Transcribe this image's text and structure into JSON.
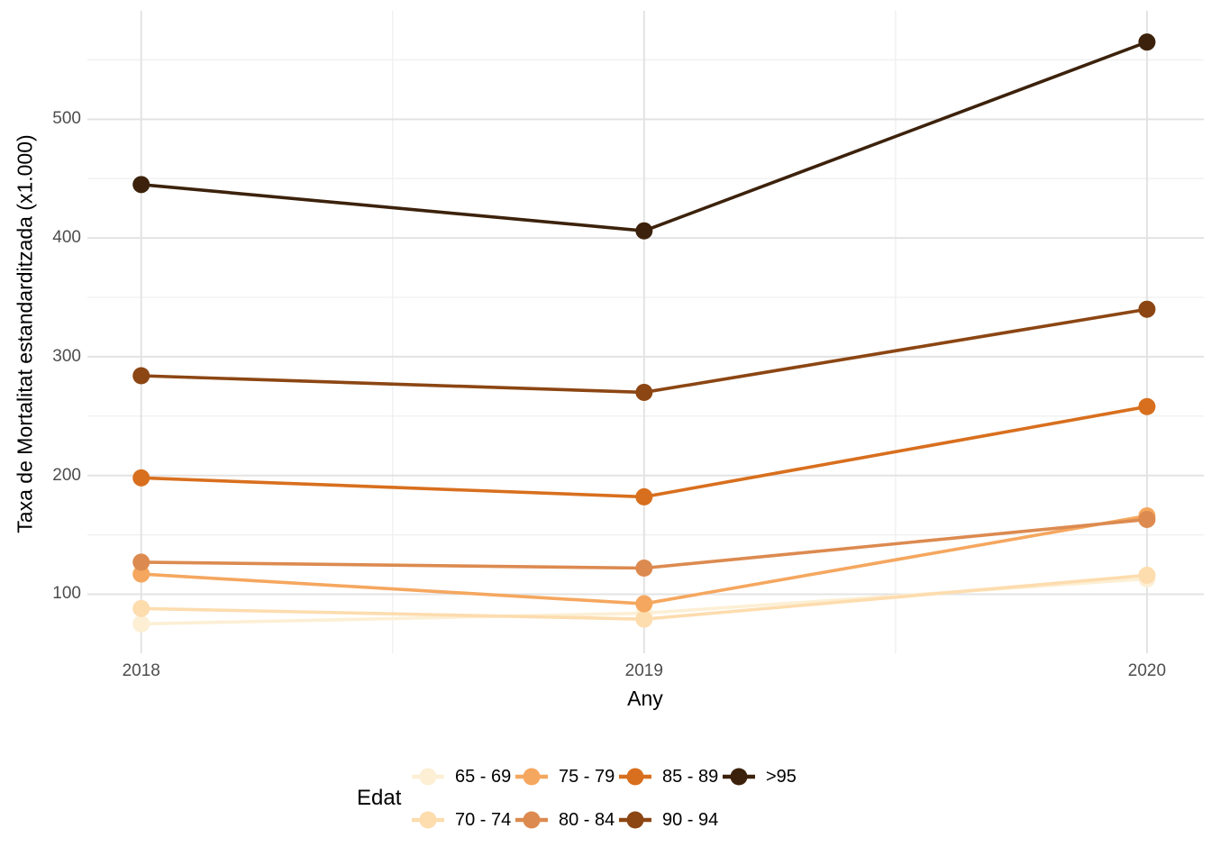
{
  "chart_data": {
    "type": "line",
    "title": "",
    "xlabel": "Any",
    "ylabel": "Taxa de Mortalitat estandarditzada (x1.000)",
    "categories": [
      "2018",
      "2019",
      "2020"
    ],
    "series": [
      {
        "name": "65 - 69",
        "color": "#FCEFD4",
        "values": [
          75,
          84,
          113
        ]
      },
      {
        "name": "70 - 74",
        "color": "#FDDCAE",
        "values": [
          88,
          79,
          116
        ]
      },
      {
        "name": "75 - 79",
        "color": "#F5A75F",
        "values": [
          117,
          92,
          166
        ]
      },
      {
        "name": "80 - 84",
        "color": "#DC8A50",
        "values": [
          127,
          122,
          163
        ]
      },
      {
        "name": "85 - 89",
        "color": "#D86F1E",
        "values": [
          198,
          182,
          258
        ]
      },
      {
        "name": "90 - 94",
        "color": "#8C4613",
        "values": [
          284,
          270,
          340
        ]
      },
      {
        "name": ">95",
        "color": "#3C220C",
        "values": [
          445,
          406,
          565
        ]
      }
    ],
    "ylim": [
      50.3,
      591.3
    ],
    "yticks": [
      100,
      200,
      300,
      400,
      500
    ],
    "yticks_minor": [
      150,
      250,
      350,
      450,
      550
    ],
    "xticks_minor_positions": [
      0.5,
      1.5
    ],
    "legend_title": "Edat",
    "legend_position": "bottom",
    "grid": true
  },
  "colors": {
    "background": "#FFFFFF",
    "grid_major": "#E3E3E3",
    "grid_minor": "#F0F0F0",
    "tick_label": "#4D4D4D",
    "axis_title": "#000000"
  }
}
